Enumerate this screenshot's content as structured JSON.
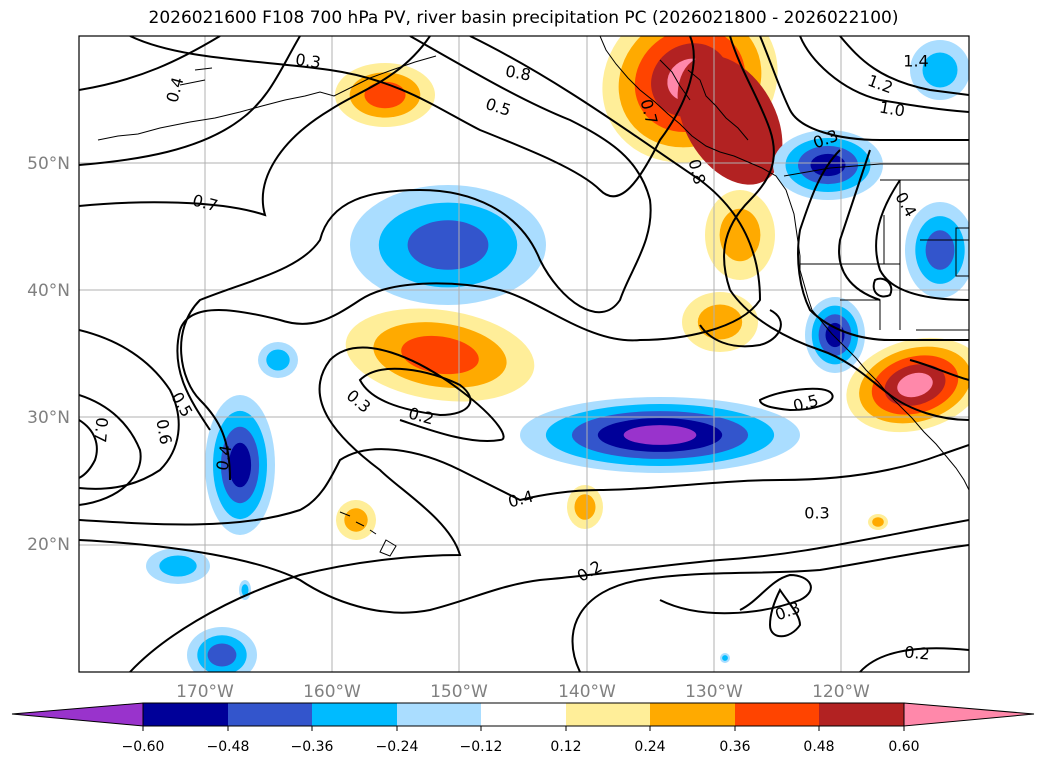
{
  "title": "2026021600 F108 700 hPa PV, river basin precipitation PC (2026021800 - 2026022100)",
  "colors": {
    "n060": "#9933cc",
    "n048": "#000099",
    "n036": "#3355cc",
    "n024": "#00bbff",
    "n012": "#aaddff",
    "p012": "#ffee99",
    "p024": "#ffaa00",
    "p036": "#ff4400",
    "p048": "#b22222",
    "p060": "#ff88aa",
    "contour": "#000000",
    "coast": "#000000",
    "grid": "#b0b0b0"
  },
  "map": {
    "lon_ticks": [
      "170°W",
      "160°W",
      "150°W",
      "140°W",
      "130°W",
      "120°W"
    ],
    "lat_ticks": [
      "50°N",
      "40°N",
      "30°N",
      "20°N"
    ]
  },
  "colorbar": {
    "ticks": [
      "−0.60",
      "−0.48",
      "−0.36",
      "−0.24",
      "−0.12",
      "0.12",
      "0.24",
      "0.36",
      "0.48",
      "0.60"
    ]
  },
  "contour_labels": [
    "0.3",
    "0.4",
    "0.8",
    "0.5",
    "1.4",
    "1.2",
    "1.0",
    "0.7",
    "0.8",
    "0.3",
    "0.7",
    "0.4",
    "0.5",
    "0.6",
    "0.4",
    "0.3",
    "0.2",
    "0.5",
    "0.4",
    "0.3",
    "0.2",
    "0.3",
    "0.2",
    "0.7"
  ],
  "chart_data": {
    "type": "map",
    "title": "2026021600 F108 700 hPa PV, river basin precipitation PC (2026021800 - 2026022100)",
    "projection": "lat-lon",
    "lon_range": [
      -180,
      -110
    ],
    "lat_range": [
      10,
      60
    ],
    "contour_field": "700 hPa PV",
    "contour_levels": [
      0.2,
      0.3,
      0.4,
      0.5,
      0.6,
      0.7,
      0.8,
      1.0,
      1.2,
      1.4
    ],
    "shaded_field": "river basin precipitation PC",
    "shading_levels": [
      -0.6,
      -0.48,
      -0.36,
      -0.24,
      -0.12,
      0.12,
      0.24,
      0.36,
      0.48,
      0.6
    ],
    "colorbar_extend": "both"
  }
}
